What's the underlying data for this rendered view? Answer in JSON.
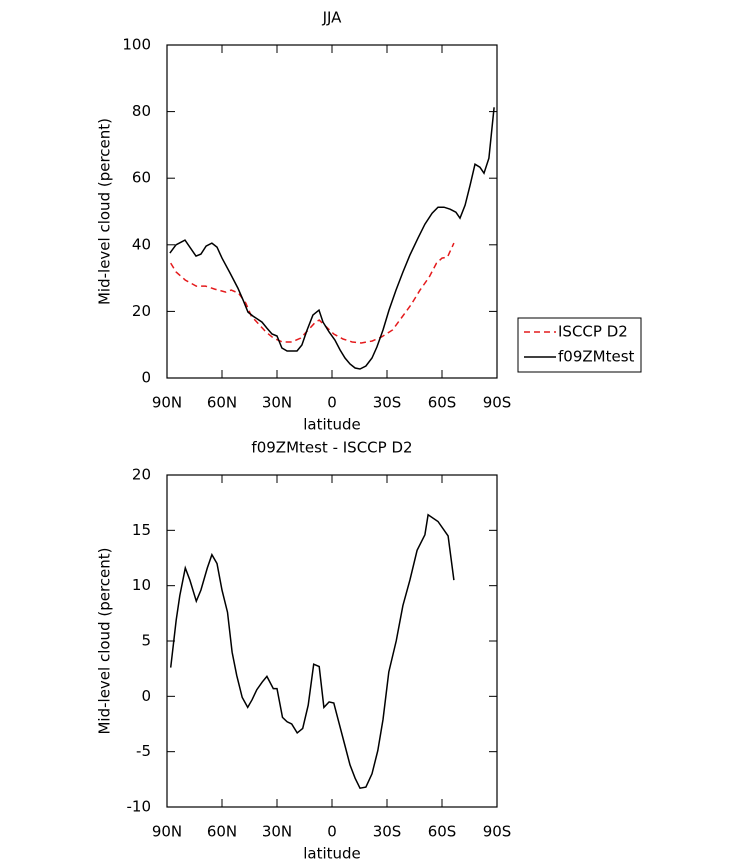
{
  "chart_data": [
    {
      "type": "line",
      "title": "JJA",
      "xlabel": "latitude",
      "ylabel": "Mid-level cloud (percent)",
      "xlim": [
        90,
        -90
      ],
      "xticks": [
        {
          "value": 90,
          "label": "90N"
        },
        {
          "value": 60,
          "label": "60N"
        },
        {
          "value": 30,
          "label": "30N"
        },
        0,
        {
          "value": -30,
          "label": "30S"
        },
        {
          "value": -60,
          "label": "60S"
        },
        {
          "value": -90,
          "label": "90S"
        }
      ],
      "ylim": [
        0,
        100
      ],
      "yticks": [
        0,
        20,
        40,
        60,
        80,
        100
      ],
      "legend": "right",
      "series": [
        {
          "name": "ISCCP D2",
          "color": "#e41a1c",
          "dash": "dashed",
          "x": [
            88,
            85,
            80,
            74,
            69,
            64,
            58,
            55,
            51,
            47,
            44,
            40,
            36,
            32,
            27,
            22,
            17,
            13,
            9,
            7,
            3,
            -1,
            -6,
            -11,
            -16,
            -22,
            -27,
            -33,
            -37,
            -43,
            -48,
            -53,
            -57,
            -60,
            -63,
            -64,
            -66.5
          ],
          "values": [
            34.5,
            31.8,
            29.4,
            27.6,
            27.6,
            26.7,
            25.8,
            26.4,
            25.5,
            22.5,
            18.6,
            16.2,
            13.8,
            12,
            10.8,
            10.8,
            12,
            14.4,
            16.8,
            17.4,
            15.3,
            13.2,
            11.7,
            10.8,
            10.5,
            11.1,
            12.3,
            14.4,
            17.4,
            21.9,
            26.4,
            30.3,
            34.5,
            36,
            36.3,
            37.5,
            40.5
          ]
        },
        {
          "name": "f09ZMtest",
          "color": "#000000",
          "dash": "solid",
          "x": [
            88.4,
            85.1,
            80.2,
            74.2,
            71.5,
            68.7,
            65.5,
            62.7,
            60,
            55.6,
            51.3,
            48.5,
            45.8,
            43.1,
            38.2,
            35.5,
            32.7,
            30,
            27.3,
            24.5,
            19.1,
            16.4,
            13.6,
            10.4,
            7.1,
            4.9,
            1.6,
            -1.6,
            -4.4,
            -7.1,
            -9.8,
            -12.6,
            -15.3,
            -18.5,
            -21.8,
            -24.5,
            -27.8,
            -31.1,
            -34.9,
            -38.7,
            -42.5,
            -46.9,
            -50.7,
            -54.6,
            -57.8,
            -61.1,
            -64.4,
            -67.6,
            -69.8,
            -72.6,
            -75.3,
            -78,
            -80.7,
            -82.9,
            -85.6,
            -88.4
          ],
          "values": [
            37.5,
            40,
            41.4,
            36.6,
            37.2,
            39.6,
            40.5,
            39.3,
            36,
            31.5,
            27,
            23.4,
            19.8,
            18.6,
            16.8,
            15,
            13.2,
            12.6,
            9,
            8.1,
            8.1,
            9.9,
            14.4,
            18.9,
            20.4,
            16.8,
            13.8,
            11.4,
            8.4,
            6,
            4.2,
            3,
            2.7,
            3.6,
            6,
            9.3,
            14.4,
            20.4,
            26.4,
            31.8,
            36.9,
            42,
            46.2,
            49.5,
            51.3,
            51.3,
            50.7,
            49.8,
            48,
            51.9,
            57.9,
            64.2,
            63.3,
            61.5,
            66,
            81.3
          ]
        }
      ]
    },
    {
      "type": "line",
      "title": "f09ZMtest - ISCCP D2",
      "xlabel": "latitude",
      "ylabel": "Mid-level cloud (percent)",
      "xlim": [
        90,
        -90
      ],
      "xticks": [
        {
          "value": 90,
          "label": "90N"
        },
        {
          "value": 60,
          "label": "60N"
        },
        {
          "value": 30,
          "label": "30N"
        },
        0,
        {
          "value": -30,
          "label": "30S"
        },
        {
          "value": -60,
          "label": "60S"
        },
        {
          "value": -90,
          "label": "90S"
        }
      ],
      "ylim": [
        -10,
        20
      ],
      "yticks": [
        -10,
        -5,
        0,
        5,
        10,
        15,
        20
      ],
      "color": "#000000",
      "x": [
        88,
        85,
        83,
        80,
        77.5,
        74,
        71.5,
        68,
        65.5,
        62.7,
        60,
        57,
        54.5,
        52,
        49,
        46,
        43.6,
        41,
        38,
        35.5,
        32,
        30,
        27,
        24.5,
        22,
        19,
        16,
        13,
        10,
        7,
        4.4,
        1.6,
        -1,
        -3.8,
        -7,
        -9.8,
        -12.6,
        -15.3,
        -18.5,
        -21.8,
        -25,
        -27.8,
        -31,
        -35,
        -38.7,
        -42.5,
        -46.4,
        -50.7,
        -52.4,
        -57.8,
        -63.3,
        -66.5
      ],
      "values": [
        2.6,
        6.9,
        9.1,
        11.6,
        10.5,
        8.6,
        9.6,
        11.6,
        12.8,
        12,
        9.6,
        7.6,
        4,
        1.9,
        -0.1,
        -1,
        -0.3,
        0.6,
        1.3,
        1.8,
        0.7,
        0.7,
        -1.9,
        -2.3,
        -2.5,
        -3.3,
        -2.9,
        -0.8,
        2.9,
        2.7,
        -1,
        -0.5,
        -0.6,
        -2.4,
        -4.4,
        -6.2,
        -7.4,
        -8.3,
        -8.2,
        -7,
        -4.9,
        -2.1,
        2.2,
        5,
        8.2,
        10.5,
        13.2,
        14.6,
        16.4,
        15.8,
        14.5,
        10.5
      ]
    }
  ]
}
